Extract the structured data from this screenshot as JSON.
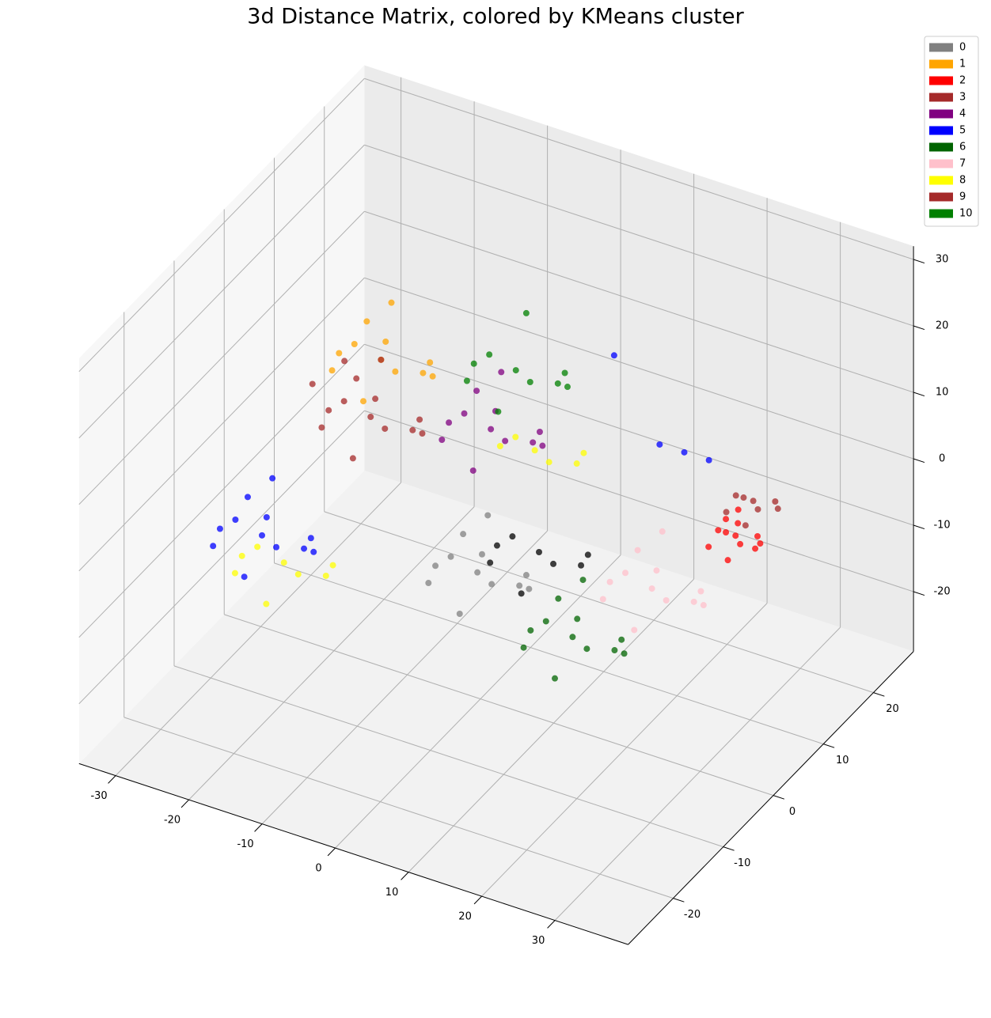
{
  "chart_data": {
    "type": "scatter3d",
    "title": "3d Distance Matrix, colored by KMeans cluster",
    "xlim": [
      -35,
      40
    ],
    "ylim": [
      -29,
      28
    ],
    "zlim": [
      -29,
      32
    ],
    "xticks": [
      -30,
      -20,
      -10,
      0,
      10,
      20,
      30
    ],
    "yticks": [
      -20,
      -10,
      0,
      10,
      20
    ],
    "zticks": [
      -20,
      -10,
      0,
      10,
      20,
      30
    ],
    "grid": true,
    "legend": "upper right",
    "series": [
      {
        "name": "0",
        "color": "#808080",
        "x": [
          3,
          7,
          -2,
          6,
          0,
          9,
          -3,
          4,
          1,
          8,
          -1,
          5
        ],
        "y": [
          -5,
          -8,
          -3,
          -1,
          -9,
          -4,
          -6,
          -10,
          0,
          -2,
          -2,
          -7
        ],
        "z": [
          -5,
          -3,
          -6,
          -9,
          -2,
          -4,
          -8,
          -7,
          -1,
          -8,
          -3,
          0
        ]
      },
      {
        "name": "1",
        "color": "#ffa500",
        "x": [
          -17,
          -13,
          -22,
          -14,
          -20,
          -11,
          -23,
          -16,
          -19,
          -12,
          -21,
          -15
        ],
        "y": [
          5,
          2,
          7,
          9,
          1,
          6,
          4,
          0,
          10,
          8,
          8,
          3
        ],
        "z": [
          12,
          14,
          11,
          8,
          15,
          13,
          9,
          10,
          16,
          9,
          14,
          17
        ]
      },
      {
        "name": "2",
        "color": "#ff0000",
        "x": [
          28,
          30,
          26,
          30,
          27,
          31,
          25,
          29,
          27,
          30,
          26,
          29
        ],
        "y": [
          10,
          8,
          11,
          12,
          8,
          10,
          9,
          7,
          12,
          11,
          11,
          9
        ],
        "z": [
          -2,
          -1,
          -3,
          -4,
          0,
          -1,
          -4,
          -3,
          0,
          -4,
          -1,
          1
        ]
      },
      {
        "name": "3",
        "color": "#a52a2a",
        "x": [
          -15,
          -11,
          -20,
          -12,
          -18,
          -9,
          -21,
          -14,
          -17,
          -10,
          -19,
          -13
        ],
        "y": [
          0,
          -3,
          2,
          4,
          -4,
          1,
          -1,
          -5,
          5,
          3,
          3,
          -2
        ],
        "z": [
          8,
          10,
          7,
          4,
          11,
          9,
          5,
          6,
          12,
          5,
          10,
          13
        ]
      },
      {
        "name": "4",
        "color": "#800080",
        "x": [
          -2,
          2,
          -7,
          1,
          -5,
          4,
          -8,
          -1,
          -4,
          3,
          -6,
          0
        ],
        "y": [
          5,
          2,
          7,
          9,
          1,
          6,
          4,
          0,
          10,
          8,
          8,
          3
        ],
        "z": [
          7,
          9,
          6,
          3,
          10,
          8,
          4,
          5,
          11,
          4,
          9,
          12
        ]
      },
      {
        "name": "5",
        "color": "#0000ff",
        "x": [
          -23,
          -19,
          -28,
          -20,
          -26,
          -17,
          -29,
          -22,
          -25,
          -18,
          -27,
          -21,
          21,
          23,
          19,
          8
        ],
        "y": [
          -10,
          -13,
          -8,
          -6,
          -14,
          -9,
          -11,
          -15,
          -5,
          -7,
          -7,
          -12,
          10,
          12,
          8,
          15
        ],
        "z": [
          -5,
          -3,
          -6,
          -9,
          -2,
          -4,
          -8,
          -7,
          -1,
          -8,
          -3,
          0,
          8,
          6,
          10,
          14
        ]
      },
      {
        "name": "6",
        "color": "#006400",
        "x": [
          16,
          20,
          11,
          19,
          13,
          22,
          10,
          17,
          14,
          21,
          12,
          18
        ],
        "y": [
          -5,
          -8,
          -3,
          -1,
          -9,
          -4,
          -6,
          -10,
          0,
          -2,
          -2,
          -7
        ],
        "z": [
          -10,
          -8,
          -11,
          -14,
          -7,
          -9,
          -13,
          -12,
          -6,
          -13,
          -8,
          -5
        ]
      },
      {
        "name": "7",
        "color": "#ffc0cb",
        "x": [
          20,
          24,
          15,
          23,
          17,
          26,
          14,
          21,
          18,
          25,
          16,
          22
        ],
        "y": [
          5,
          2,
          7,
          9,
          1,
          6,
          4,
          0,
          10,
          8,
          8,
          3
        ],
        "z": [
          -9,
          -7,
          -10,
          -13,
          -6,
          -8,
          -12,
          -11,
          -5,
          -12,
          -7,
          -4
        ]
      },
      {
        "name": "8",
        "color": "#ffff00",
        "x": [
          4,
          8,
          0,
          7,
          2,
          10,
          -20,
          -16,
          -25,
          -17,
          -23,
          -14,
          -26,
          -19
        ],
        "y": [
          5,
          2,
          7,
          9,
          1,
          6,
          -10,
          -13,
          -8,
          -6,
          -14,
          -9,
          -11,
          -15
        ],
        "z": [
          6,
          8,
          5,
          2,
          9,
          7,
          -8,
          -6,
          -9,
          -12,
          -5,
          -7,
          -11,
          -10
        ]
      },
      {
        "name": "9",
        "color": "#a52a2a",
        "x": [
          27,
          29,
          25,
          29,
          26,
          30,
          24,
          28,
          -22,
          -25
        ],
        "y": [
          15,
          13,
          16,
          17,
          13,
          15,
          14,
          12,
          5,
          3
        ],
        "z": [
          -1,
          0,
          -2,
          -3,
          1,
          0,
          -3,
          -2,
          10,
          7
        ]
      },
      {
        "name": "10",
        "color": "#008000",
        "x": [
          -2,
          2,
          -7,
          1,
          -5,
          4,
          -8,
          -1,
          -4,
          3
        ],
        "y": [
          10,
          7,
          12,
          14,
          6,
          11,
          9,
          5,
          15,
          13
        ],
        "z": [
          12,
          14,
          11,
          8,
          15,
          13,
          9,
          10,
          16,
          9
        ]
      },
      {
        "color": "#000000",
        "x": [
          8,
          12,
          3,
          11,
          5,
          14,
          2,
          9
        ],
        "y": [
          0,
          -3,
          2,
          4,
          -4,
          1,
          -1,
          -5
        ],
        "z": [
          -4,
          -2,
          -5,
          -8,
          -1,
          -3,
          -7,
          -6
        ]
      }
    ]
  }
}
